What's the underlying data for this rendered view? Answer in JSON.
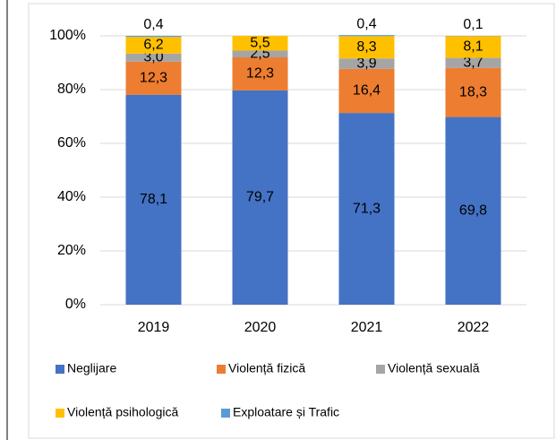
{
  "chart_data": {
    "type": "bar",
    "stacked": true,
    "categories": [
      "2019",
      "2020",
      "2021",
      "2022"
    ],
    "series": [
      {
        "name": "Neglijare",
        "color": "#4472c4",
        "values": [
          78.1,
          79.7,
          71.3,
          69.8
        ],
        "value_labels": [
          "78,1",
          "79,7",
          "71,3",
          "69,8"
        ]
      },
      {
        "name": "Violență fizică",
        "color": "#ed7d31",
        "values": [
          12.3,
          12.3,
          16.4,
          18.3
        ],
        "value_labels": [
          "12,3",
          "12,3",
          "16,4",
          "18,3"
        ]
      },
      {
        "name": "Violență sexuală",
        "color": "#a5a5a5",
        "values": [
          3.0,
          2.5,
          3.9,
          3.7
        ],
        "value_labels": [
          "3,0",
          "2,5",
          "3,9",
          "3,7"
        ]
      },
      {
        "name": "Violență psihologică",
        "color": "#ffc000",
        "values": [
          6.2,
          5.5,
          8.3,
          8.1
        ],
        "value_labels": [
          "6,2",
          "5,5",
          "8,3",
          "8,1"
        ]
      },
      {
        "name": "Exploatare și Trafic",
        "color": "#5b9bd5",
        "values": [
          0.4,
          null,
          0.4,
          0.1
        ],
        "value_labels": [
          "0,4",
          null,
          "0,4",
          "0,1"
        ]
      }
    ],
    "ylim": [
      0,
      100
    ],
    "yticks": [
      {
        "value": 0,
        "label": "0%"
      },
      {
        "value": 20,
        "label": "20%"
      },
      {
        "value": 40,
        "label": "40%"
      },
      {
        "value": 60,
        "label": "60%"
      },
      {
        "value": 80,
        "label": "80%"
      },
      {
        "value": 100,
        "label": "100%"
      }
    ],
    "grid": true
  }
}
